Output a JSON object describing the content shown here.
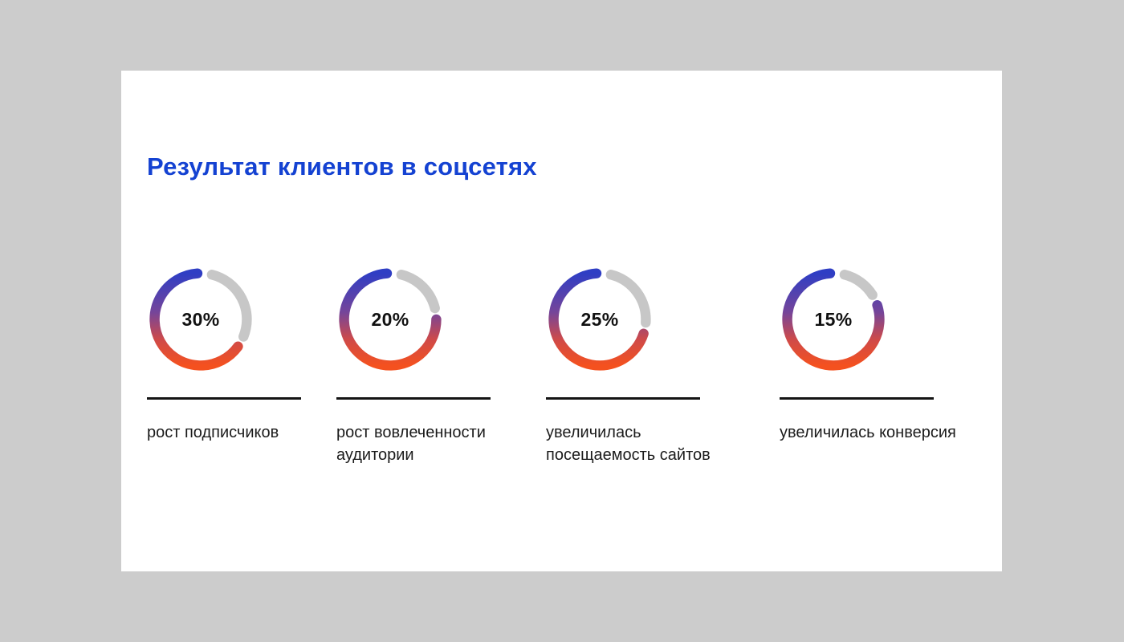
{
  "page": {
    "background_color": "#cccccc",
    "card_background": "#ffffff"
  },
  "title": "Результат клиентов в соцсетях",
  "title_color": "#1442d2",
  "chart_data": {
    "type": "donut-progress",
    "title": "Результат клиентов в соцсетях",
    "value_unit": "%",
    "items": [
      {
        "value": 30,
        "value_display": "30%",
        "label": "рост подписчиков"
      },
      {
        "value": 20,
        "value_display": "20%",
        "label": "рост вовлеченности аудитории"
      },
      {
        "value": 25,
        "value_display": "25%",
        "label": "увеличилась посещаемость сайтов"
      },
      {
        "value": 15,
        "value_display": "15%",
        "label": "увеличилась конверсия"
      }
    ],
    "ring": {
      "track_color": "#c7c7c7",
      "track_represents": "value_percent_clockwise_from_top",
      "remainder_gradient": [
        "#2f3ec4",
        "#75459a",
        "#cf4a49",
        "#f4511f"
      ],
      "value_text_color": "#111111"
    },
    "divider_color": "#141414",
    "label_color": "#1b1b1b"
  }
}
